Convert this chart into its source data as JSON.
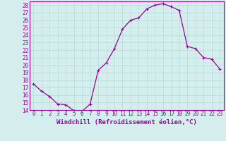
{
  "x": [
    0,
    1,
    2,
    3,
    4,
    5,
    6,
    7,
    8,
    9,
    10,
    11,
    12,
    13,
    14,
    15,
    16,
    17,
    18,
    19,
    20,
    21,
    22,
    23
  ],
  "y": [
    17.5,
    16.5,
    15.8,
    14.8,
    14.7,
    13.9,
    13.8,
    14.8,
    19.3,
    20.3,
    22.2,
    24.8,
    26.0,
    26.3,
    27.5,
    28.0,
    28.2,
    27.8,
    27.3,
    22.5,
    22.2,
    21.0,
    20.8,
    19.5
  ],
  "line_color": "#990099",
  "marker": "+",
  "marker_size": 3,
  "marker_lw": 0.8,
  "line_width": 0.9,
  "bg_color": "#d4eeee",
  "grid_color": "#b8dada",
  "xlabel": "Windchill (Refroidissement éolien,°C)",
  "ylim": [
    14,
    28.5
  ],
  "xlim": [
    -0.5,
    23.5
  ],
  "yticks": [
    14,
    15,
    16,
    17,
    18,
    19,
    20,
    21,
    22,
    23,
    24,
    25,
    26,
    27,
    28
  ],
  "xticks": [
    0,
    1,
    2,
    3,
    4,
    5,
    6,
    7,
    8,
    9,
    10,
    11,
    12,
    13,
    14,
    15,
    16,
    17,
    18,
    19,
    20,
    21,
    22,
    23
  ],
  "tick_label_size": 5.5,
  "xlabel_size": 6.5
}
